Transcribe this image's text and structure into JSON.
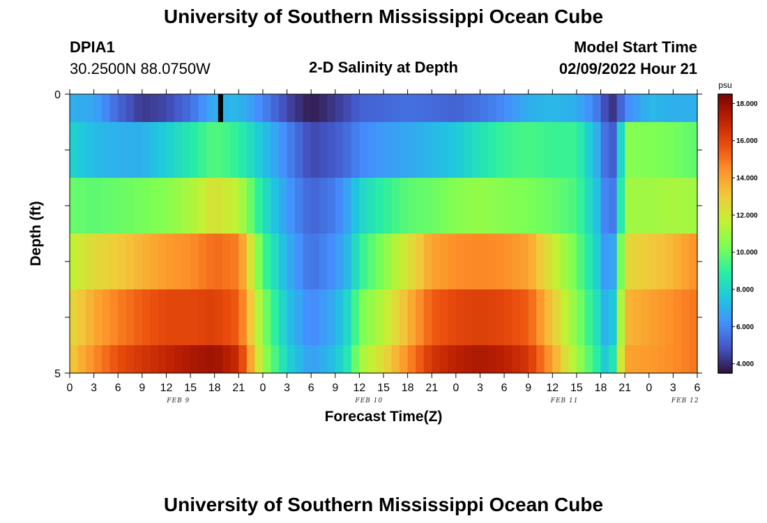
{
  "header": {
    "title": "University of Southern Mississippi Ocean Cube",
    "station_id": "DPIA1",
    "coordinates": "30.2500N  88.0750W",
    "chart_title": "2-D Salinity at Depth",
    "model_start_label": "Model Start Time",
    "model_start_value": "02/09/2022 Hour 21"
  },
  "footer": {
    "title": "University of Southern Mississippi Ocean Cube"
  },
  "chart_data": {
    "type": "heatmap",
    "title": "2-D Salinity at Depth",
    "xlabel": "Forecast Time(Z)",
    "ylabel": "Depth (ft)",
    "ylim": [
      0,
      5
    ],
    "y_tick_labels": [
      "0",
      "5"
    ],
    "x_tick_labels": [
      "0",
      "3",
      "6",
      "9",
      "12",
      "15",
      "18",
      "21",
      "0",
      "3",
      "6",
      "9",
      "12",
      "15",
      "18",
      "21",
      "0",
      "3",
      "6",
      "9",
      "12",
      "15",
      "18",
      "21",
      "0",
      "3",
      "6"
    ],
    "date_labels": [
      {
        "label": "FEB 9",
        "hour_index": 4.5
      },
      {
        "label": "FEB 10",
        "hour_index": 12.4
      },
      {
        "label": "FEB 11",
        "hour_index": 20.5
      },
      {
        "label": "FEB 12",
        "hour_index": 25.5
      }
    ],
    "time_steps": 78,
    "depth_layers": 5,
    "colorbar": {
      "unit": "psu",
      "min": 3.5,
      "max": 18.5,
      "tick_labels": [
        "4.000",
        "6.000",
        "8.000",
        "10.000",
        "12.000",
        "14.000",
        "16.000",
        "18.000"
      ],
      "tick_values": [
        4,
        6,
        8,
        10,
        12,
        14,
        16,
        18
      ],
      "colors": [
        "#30123b",
        "#4454c4",
        "#4490fe",
        "#1fc8de",
        "#29efa2",
        "#7cff55",
        "#c3f133",
        "#f1ca3a",
        "#fe922a",
        "#ea4e0d",
        "#be2102",
        "#7a0403"
      ]
    },
    "anchor_hours": [
      0,
      3,
      6,
      9,
      12,
      15,
      18,
      21,
      24,
      27,
      30,
      33,
      35,
      36,
      39,
      42,
      45,
      48,
      51,
      54,
      57,
      60,
      63,
      66,
      67,
      68,
      69,
      72,
      75,
      78
    ],
    "layers": [
      {
        "depth_range": "0.0-0.5",
        "values": [
          7.0,
          6.8,
          5.3,
          4.3,
          4.6,
          5.5,
          7.0,
          7.2,
          6.0,
          4.6,
          3.7,
          4.3,
          4.8,
          5.2,
          5.3,
          5.5,
          5.4,
          5.2,
          5.6,
          6.1,
          7.0,
          7.2,
          7.0,
          5.5,
          4.0,
          4.5,
          6.0,
          7.2,
          7.0,
          7.0
        ]
      },
      {
        "depth_range": "0.5-1.5",
        "values": [
          8.0,
          7.3,
          7.0,
          7.0,
          7.8,
          8.7,
          9.7,
          9.0,
          7.5,
          6.0,
          4.6,
          5.0,
          5.6,
          6.0,
          6.5,
          6.8,
          7.2,
          7.6,
          8.5,
          9.2,
          9.5,
          9.2,
          9.2,
          6.5,
          4.6,
          5.6,
          10.5,
          10.4,
          10.2,
          9.8
        ]
      },
      {
        "depth_range": "1.5-2.5",
        "values": [
          10.0,
          9.8,
          10.0,
          10.2,
          10.5,
          11.2,
          12.3,
          11.5,
          8.5,
          6.5,
          5.2,
          5.8,
          7.0,
          8.0,
          9.0,
          9.8,
          10.0,
          10.5,
          10.8,
          10.5,
          10.3,
          10.0,
          9.5,
          7.0,
          5.0,
          6.5,
          11.0,
          11.0,
          11.2,
          11.0
        ]
      },
      {
        "depth_range": "2.5-3.5",
        "values": [
          11.5,
          12.5,
          13.0,
          13.6,
          14.2,
          14.5,
          15.2,
          14.8,
          9.5,
          7.0,
          5.5,
          6.3,
          7.5,
          9.0,
          10.5,
          12.2,
          14.0,
          14.5,
          14.6,
          14.5,
          14.0,
          12.0,
          10.0,
          7.5,
          5.5,
          8.0,
          12.5,
          13.0,
          13.5,
          14.5
        ]
      },
      {
        "depth_range": "3.5-4.5",
        "values": [
          12.5,
          13.8,
          14.8,
          15.5,
          16.0,
          16.0,
          16.2,
          15.5,
          10.5,
          7.5,
          6.0,
          7.0,
          8.5,
          10.2,
          11.5,
          13.5,
          15.5,
          16.0,
          16.2,
          16.0,
          15.5,
          13.0,
          10.5,
          8.0,
          6.2,
          9.0,
          13.5,
          14.0,
          14.5,
          15.0
        ]
      },
      {
        "depth_range": "4.5-5.0",
        "values": [
          13.0,
          14.5,
          15.8,
          16.5,
          17.0,
          17.5,
          17.8,
          16.8,
          11.0,
          8.0,
          6.5,
          7.5,
          9.0,
          11.0,
          12.5,
          14.5,
          16.5,
          17.2,
          17.5,
          17.2,
          16.5,
          14.0,
          11.0,
          8.5,
          7.0,
          10.0,
          14.0,
          14.2,
          14.5,
          15.0
        ]
      }
    ],
    "missing_column": {
      "hour_index": 6.25,
      "layer": 0,
      "color": "#000000"
    }
  }
}
